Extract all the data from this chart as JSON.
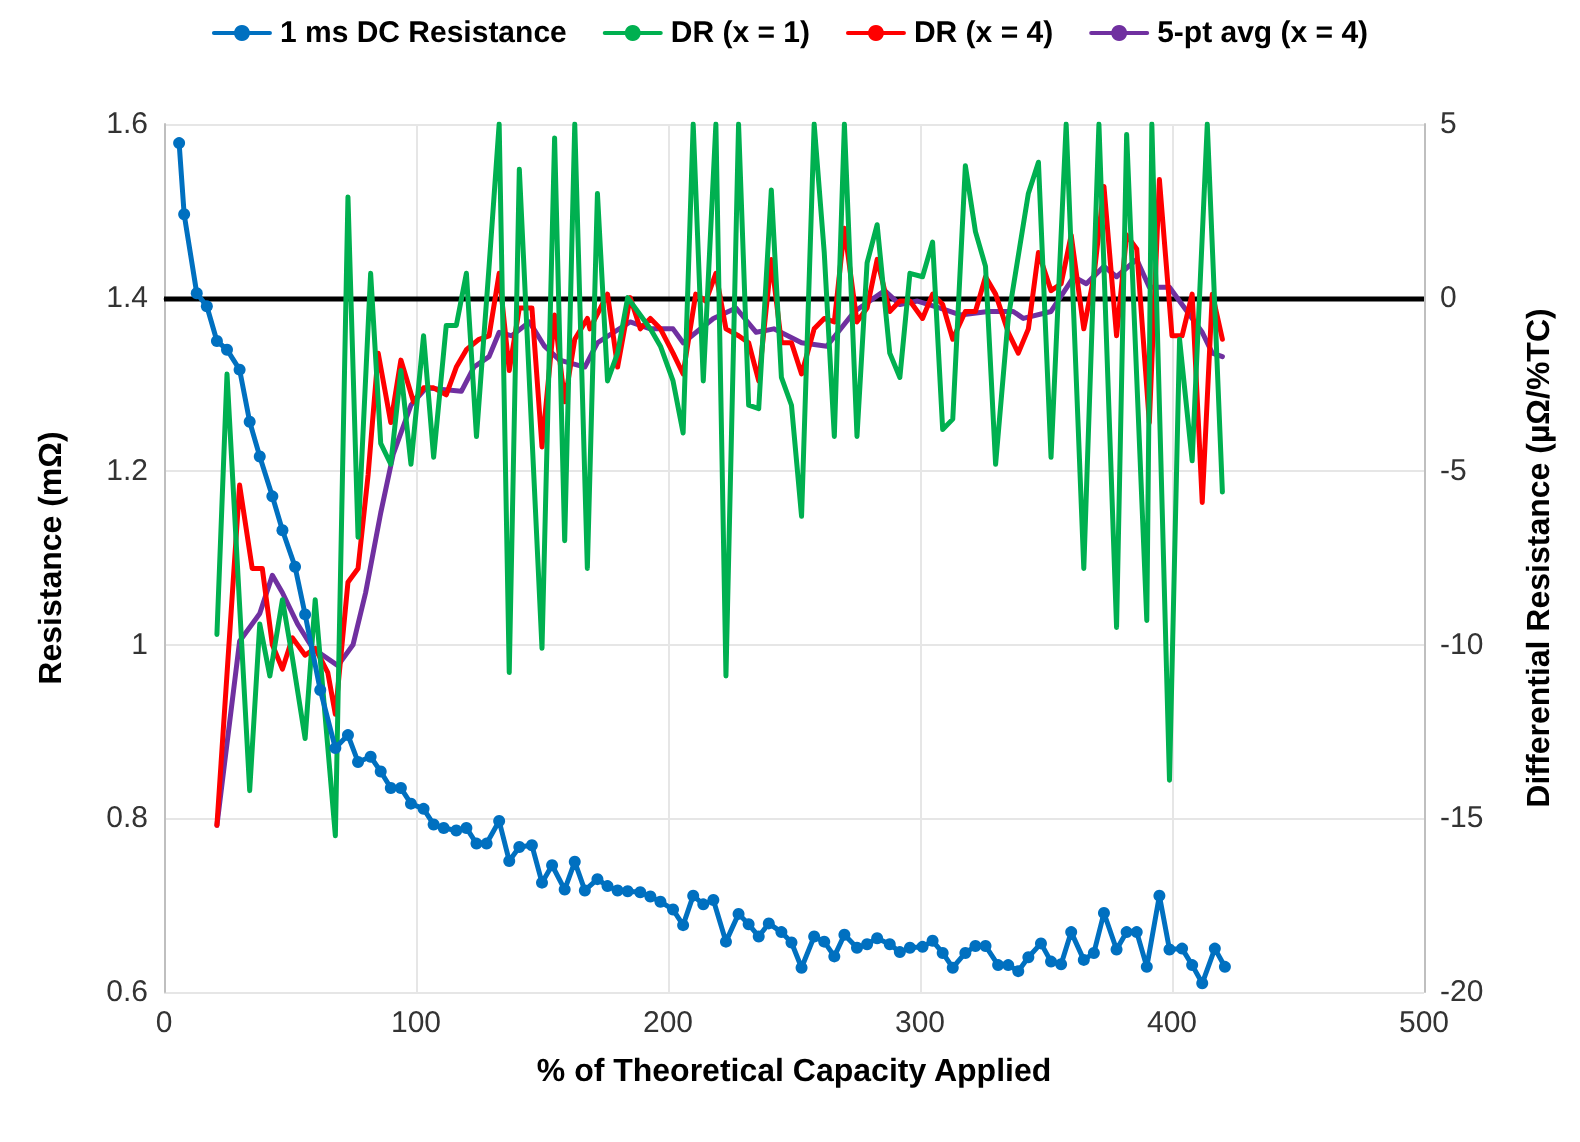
{
  "chart_data": {
    "type": "line",
    "xlabel": "% of Theoretical Capacity Applied",
    "ylabel": "Resistance (mΩ)",
    "y2label": "Differential Resistance (µΩ/%TC)",
    "xlim": [
      0,
      500
    ],
    "xticks": [
      0,
      100,
      200,
      300,
      400,
      500
    ],
    "ylim": [
      0.6,
      1.6
    ],
    "yticks": [
      0.6,
      0.8,
      1.0,
      1.2,
      1.4,
      1.6
    ],
    "y2lim": [
      -20,
      5
    ],
    "y2ticks": [
      -20,
      -15,
      -10,
      -5,
      0,
      5
    ],
    "grid": true,
    "legend": "top",
    "line_style": "solid",
    "ref_lines": [
      {
        "axis": "y2",
        "value": 0,
        "color": "#000000"
      }
    ],
    "series": [
      {
        "name": "1 ms DC Resistance",
        "color": "#0070c0",
        "marker": "circle",
        "x": [
          6,
          8,
          13,
          17,
          21,
          25,
          30,
          34,
          38,
          43,
          47,
          52,
          56,
          62,
          68,
          73,
          77,
          82,
          86,
          90,
          94,
          98,
          103,
          107,
          111,
          116,
          120,
          124,
          128,
          133,
          137,
          141,
          146,
          150,
          154,
          159,
          163,
          167,
          172,
          176,
          180,
          184,
          189,
          193,
          197,
          202,
          206,
          210,
          214,
          218,
          223,
          228,
          232,
          236,
          240,
          245,
          249,
          253,
          258,
          262,
          266,
          270,
          275,
          279,
          283,
          288,
          292,
          296,
          301,
          305,
          309,
          313,
          318,
          322,
          326,
          331,
          335,
          339,
          343,
          348,
          352,
          356,
          360,
          365,
          369,
          373,
          378,
          382,
          386,
          390,
          395,
          399,
          404,
          408,
          412,
          417,
          421
        ],
        "values": [
          1.578,
          1.496,
          1.405,
          1.39,
          1.35,
          1.34,
          1.317,
          1.257,
          1.217,
          1.171,
          1.132,
          1.09,
          1.035,
          0.948,
          0.881,
          0.896,
          0.865,
          0.871,
          0.854,
          0.835,
          0.835,
          0.817,
          0.811,
          0.793,
          0.789,
          0.786,
          0.789,
          0.771,
          0.771,
          0.797,
          0.751,
          0.767,
          0.769,
          0.726,
          0.746,
          0.718,
          0.75,
          0.717,
          0.73,
          0.722,
          0.717,
          0.716,
          0.715,
          0.71,
          0.704,
          0.695,
          0.677,
          0.711,
          0.701,
          0.706,
          0.658,
          0.69,
          0.678,
          0.664,
          0.679,
          0.669,
          0.657,
          0.628,
          0.664,
          0.658,
          0.641,
          0.666,
          0.651,
          0.655,
          0.662,
          0.655,
          0.646,
          0.651,
          0.652,
          0.659,
          0.645,
          0.628,
          0.645,
          0.653,
          0.653,
          0.631,
          0.631,
          0.624,
          0.64,
          0.656,
          0.635,
          0.632,
          0.669,
          0.637,
          0.645,
          0.691,
          0.649,
          0.669,
          0.669,
          0.629,
          0.711,
          0.649,
          0.65,
          0.631,
          0.61,
          0.65,
          0.629
        ]
      },
      {
        "name": "DR (x = 1)",
        "color": "#00b050",
        "marker": "none",
        "axis": "y2",
        "x": [
          21,
          25,
          34,
          38,
          42,
          47,
          51,
          56,
          60,
          68,
          73,
          77,
          82,
          86,
          90,
          94,
          98,
          103,
          107,
          112,
          116,
          120,
          124,
          129,
          133,
          137,
          141,
          150,
          155,
          159,
          163,
          168,
          172,
          176,
          180,
          184,
          189,
          193,
          197,
          202,
          206,
          210,
          214,
          219,
          223,
          228,
          232,
          236,
          241,
          245,
          249,
          253,
          258,
          262,
          266,
          270,
          275,
          279,
          283,
          288,
          292,
          296,
          301,
          305,
          309,
          313,
          318,
          322,
          326,
          330,
          335,
          343,
          347,
          352,
          358,
          365,
          371,
          378,
          382,
          390,
          392,
          399,
          403,
          408,
          414,
          420
        ],
        "values": [
          -9.7,
          -2.2,
          -14.2,
          -9.4,
          -10.9,
          -8.7,
          -10.4,
          -12.7,
          -8.7,
          -15.5,
          2.9,
          -6.9,
          0.7,
          -4.2,
          -4.8,
          -2.1,
          -4.8,
          -1.1,
          -4.6,
          -0.8,
          -0.8,
          0.7,
          -4.0,
          0.9,
          5,
          -10.8,
          3.7,
          -10.1,
          4.6,
          -7.0,
          5,
          -7.8,
          3.0,
          -2.4,
          -1.6,
          0.0,
          -0.5,
          -0.9,
          -1.4,
          -2.4,
          -3.9,
          5,
          -2.4,
          5,
          -10.9,
          5,
          -3.1,
          -3.2,
          3.1,
          -2.3,
          -3.1,
          -6.3,
          5,
          1.3,
          -4.0,
          5,
          -4.0,
          1.0,
          2.1,
          -1.6,
          -2.3,
          0.7,
          0.6,
          1.6,
          -3.8,
          -3.5,
          3.8,
          1.9,
          0.9,
          -4.8,
          -0.6,
          3.0,
          3.9,
          -4.6,
          5,
          -7.8,
          5,
          -9.5,
          4.7,
          -9.3,
          5,
          -13.9,
          -1.2,
          -4.7,
          5,
          -5.6
        ]
      },
      {
        "name": "DR (x = 4)",
        "color": "#ff0000",
        "marker": "none",
        "axis": "y2",
        "x": [
          21,
          30,
          35,
          39,
          43,
          47,
          51,
          56,
          60,
          65,
          68,
          73,
          77,
          81,
          85,
          90,
          94,
          99,
          103,
          107,
          112,
          116,
          120,
          125,
          129,
          133,
          137,
          141,
          146,
          150,
          155,
          159,
          163,
          168,
          169,
          176,
          180,
          185,
          189,
          193,
          197,
          202,
          206,
          211,
          215,
          219,
          223,
          228,
          232,
          236,
          241,
          245,
          249,
          253,
          258,
          262,
          266,
          270,
          275,
          279,
          283,
          288,
          292,
          296,
          301,
          305,
          309,
          313,
          318,
          322,
          326,
          330,
          335,
          339,
          343,
          347,
          352,
          356,
          360,
          365,
          369,
          373,
          378,
          382,
          386,
          391,
          395,
          400,
          404,
          408,
          412,
          416,
          420
        ],
        "values": [
          -15.2,
          -5.4,
          -7.8,
          -7.8,
          -10.0,
          -10.7,
          -9.8,
          -10.3,
          -10.1,
          -10.8,
          -12.0,
          -8.2,
          -7.8,
          -5.1,
          -1.6,
          -3.6,
          -1.8,
          -3.0,
          -2.6,
          -2.6,
          -2.8,
          -2.0,
          -1.5,
          -1.2,
          -1.1,
          0.7,
          -2.1,
          -0.3,
          -0.3,
          -4.3,
          -0.5,
          -3.0,
          -1.2,
          -0.6,
          -0.9,
          0.1,
          -2.0,
          0.0,
          -0.9,
          -0.6,
          -0.9,
          -1.6,
          -2.2,
          0.1,
          -0.1,
          0.7,
          -0.9,
          -1.1,
          -1.3,
          -2.4,
          1.1,
          -1.3,
          -1.3,
          -2.2,
          -0.9,
          -0.6,
          -0.7,
          2.0,
          -0.7,
          -0.3,
          1.1,
          -0.4,
          -0.1,
          -0.1,
          -0.6,
          0.1,
          -0.2,
          -1.2,
          -0.4,
          -0.4,
          0.6,
          0.1,
          -1.0,
          -1.6,
          -0.9,
          1.3,
          0.2,
          0.4,
          1.8,
          -0.9,
          0.6,
          3.2,
          -1.1,
          1.8,
          1.4,
          -3.6,
          3.4,
          -1.1,
          -1.1,
          0.1,
          -5.9,
          0.1,
          -1.2
        ]
      },
      {
        "name": "5-pt avg (x = 4)",
        "color": "#7030a0",
        "marker": "none",
        "axis": "y2",
        "x": [
          21,
          30,
          38,
          43,
          47,
          53,
          59,
          69,
          75,
          80,
          86,
          91,
          98,
          104,
          118,
          123,
          129,
          133,
          138,
          145,
          151,
          157,
          167,
          172,
          185,
          193,
          202,
          206,
          218,
          227,
          235,
          242,
          253,
          263,
          274,
          286,
          292,
          299,
          308,
          316,
          327,
          337,
          341,
          352,
          361,
          366,
          373,
          378,
          386,
          391,
          399,
          406,
          412,
          416,
          420
        ],
        "values": [
          -15.2,
          -9.9,
          -9.1,
          -8.0,
          -8.5,
          -9.4,
          -10.1,
          -10.6,
          -10.0,
          -8.5,
          -6.2,
          -4.5,
          -3.1,
          -2.6,
          -2.7,
          -2.0,
          -1.7,
          -1.0,
          -1.1,
          -0.7,
          -1.4,
          -1.8,
          -2.0,
          -1.3,
          -0.7,
          -0.9,
          -0.9,
          -1.3,
          -0.6,
          -0.3,
          -1.0,
          -0.9,
          -1.3,
          -1.4,
          -0.4,
          0.2,
          -0.2,
          -0.1,
          -0.3,
          -0.5,
          -0.4,
          -0.4,
          -0.6,
          -0.4,
          0.6,
          0.4,
          0.9,
          0.6,
          1.1,
          0.3,
          0.3,
          -0.4,
          -1.0,
          -1.6,
          -1.7
        ]
      }
    ]
  }
}
